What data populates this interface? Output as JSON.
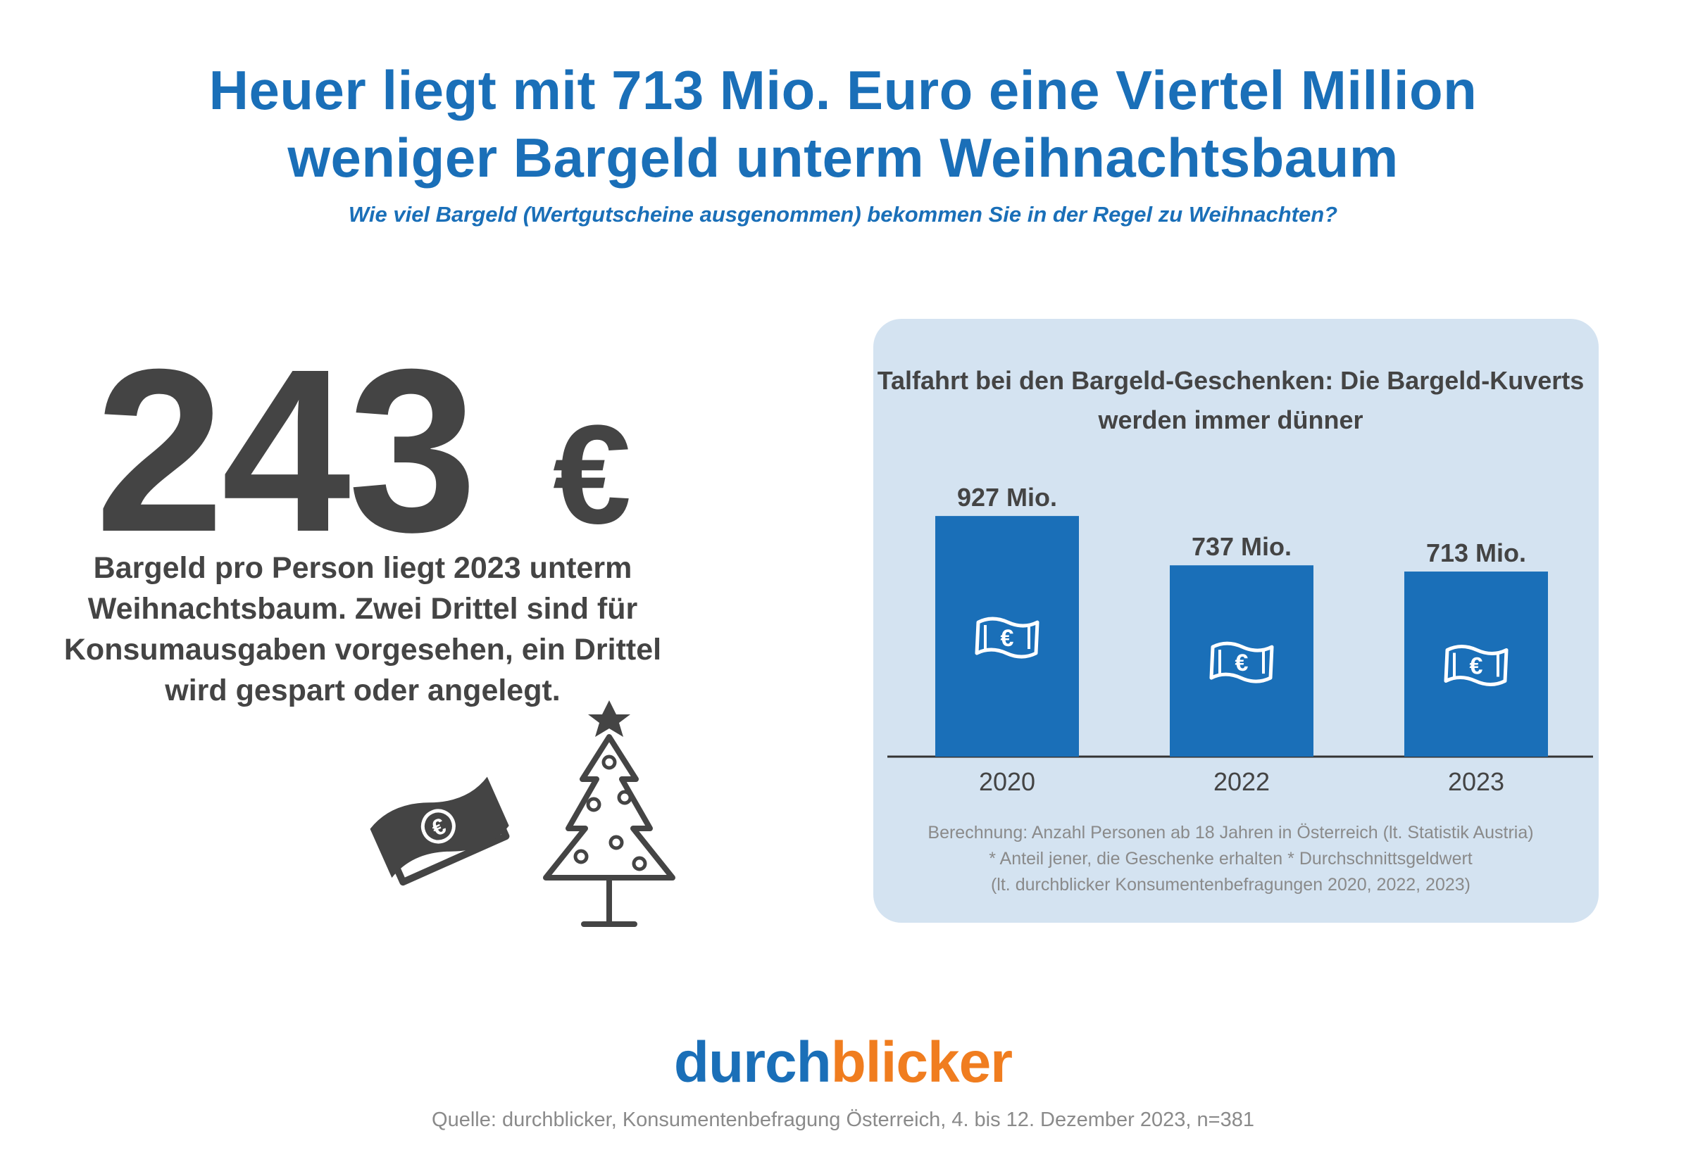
{
  "headline": {
    "line1": "Heuer liegt mit 713 Mio. Euro eine Viertel Million",
    "line2": "weniger Bargeld unterm Weihnachtsbaum"
  },
  "subtitle": "Wie viel Bargeld (Wertgutscheine ausgenommen) bekommen Sie in der Regel zu Weihnachten?",
  "highlight": {
    "value": "243",
    "unit": "€",
    "text": "Bargeld pro Person liegt 2023 unterm Weihnachtsbaum. Zwei Drittel sind für Konsumausgaben vorgesehen, ein Drittel wird gespart oder angelegt."
  },
  "icons": {
    "money": "money-bill-euro-icon",
    "tree": "christmas-tree-icon",
    "bar_badge": "euro-banknote-icon"
  },
  "colors": {
    "headline": "#1a6fb8",
    "bar": "#1a6fb8",
    "panel": "#d4e3f1",
    "text_dark": "#444444",
    "brand_blue": "#1a6fb8",
    "brand_orange": "#f07d1f"
  },
  "chart_data": {
    "type": "bar",
    "title": "Talfahrt bei den Bargeld-Geschenken: Die Bargeld-Kuverts werden immer dünner",
    "categories": [
      "2020",
      "2022",
      "2023"
    ],
    "values": [
      927,
      737,
      713
    ],
    "value_labels": [
      "927 Mio.",
      "737 Mio.",
      "713 Mio."
    ],
    "unit": "Mio.",
    "xlabel": "",
    "ylabel": "",
    "ylim": [
      0,
      1000
    ],
    "grid": false,
    "legend": "none"
  },
  "footnote": {
    "line1": "Berechnung: Anzahl Personen ab 18 Jahren in Österreich (lt. Statistik Austria)",
    "line2": "* Anteil jener, die Geschenke erhalten * Durchschnittsgeldwert",
    "line3": "(lt. durchblicker Konsumentenbefragungen 2020, 2022, 2023)"
  },
  "brand": {
    "part1": "durch",
    "part2": "blicker"
  },
  "source": "Quelle: durchblicker, Konsumentenbefragung Österreich,  4. bis 12. Dezember 2023, n=381"
}
